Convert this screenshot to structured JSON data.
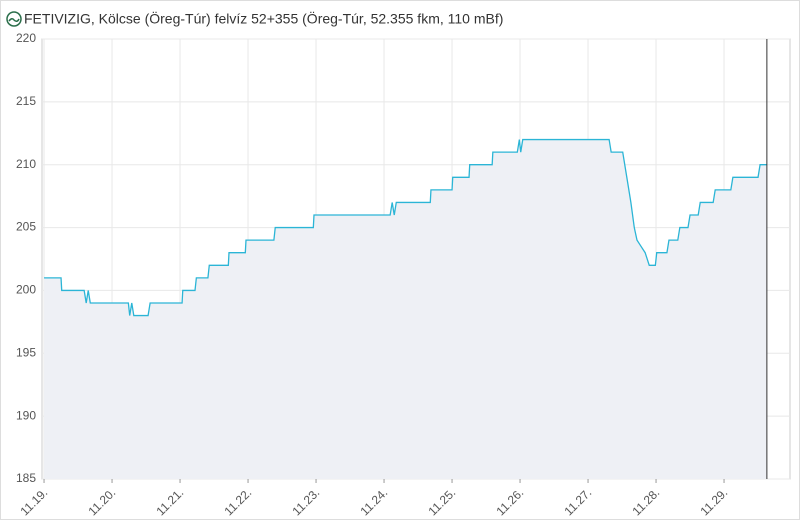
{
  "chart_data": {
    "type": "line",
    "title": "FETIVIZIG, Kölcse (Öreg-Túr) felvíz 52+355 (Öreg-Túr, 52.355 fkm, 110 mBf)",
    "x": [
      0,
      0.25,
      0.26,
      0.59,
      0.62,
      0.65,
      0.68,
      1.24,
      1.26,
      1.29,
      1.32,
      1.53,
      1.56,
      2.03,
      2.04,
      2.22,
      2.24,
      2.41,
      2.43,
      2.71,
      2.72,
      2.96,
      2.97,
      3.38,
      3.4,
      3.96,
      3.97,
      5.09,
      5.12,
      5.15,
      5.18,
      5.68,
      5.69,
      6.0,
      6.01,
      6.25,
      6.26,
      6.59,
      6.6,
      6.96,
      6.99,
      7.01,
      7.04,
      8.31,
      8.34,
      8.51,
      8.57,
      8.63,
      8.68,
      8.72,
      8.78,
      8.84,
      8.9,
      8.99,
      9.01,
      9.16,
      9.19,
      9.32,
      9.35,
      9.47,
      9.5,
      9.62,
      9.65,
      9.84,
      9.87,
      10.1,
      10.13,
      10.5,
      10.53,
      10.63
    ],
    "values": [
      201,
      201,
      200,
      200,
      199,
      200,
      199,
      199,
      198,
      199,
      198,
      198,
      199,
      199,
      200,
      200,
      201,
      201,
      202,
      202,
      203,
      203,
      204,
      204,
      205,
      205,
      206,
      206,
      207,
      206,
      207,
      207,
      208,
      208,
      209,
      209,
      210,
      210,
      211,
      211,
      212,
      211,
      212,
      212,
      211,
      211,
      209,
      207,
      205,
      204,
      203.5,
      203,
      202,
      202,
      203,
      203,
      204,
      204,
      205,
      205,
      206,
      206,
      207,
      207,
      208,
      208,
      209,
      209,
      210,
      210
    ],
    "color": "#2bb5d6",
    "fill_color": "#eef0f5",
    "xlim": [
      -0.03,
      10.97
    ],
    "xticks": [
      {
        "value": 0,
        "label": "11.19."
      },
      {
        "value": 1,
        "label": "11.20."
      },
      {
        "value": 2,
        "label": "11.21."
      },
      {
        "value": 3,
        "label": "11.22."
      },
      {
        "value": 4,
        "label": "11.23."
      },
      {
        "value": 5,
        "label": "11.24."
      },
      {
        "value": 6,
        "label": "11.25."
      },
      {
        "value": 7,
        "label": "11.26."
      },
      {
        "value": 8,
        "label": "11.27."
      },
      {
        "value": 9,
        "label": "11.28."
      },
      {
        "value": 10,
        "label": "11.29."
      }
    ],
    "ylim": [
      185,
      220
    ],
    "yticks": [
      185,
      190,
      195,
      200,
      205,
      210,
      215,
      220
    ],
    "grid": true,
    "current_time_x": 10.63
  }
}
